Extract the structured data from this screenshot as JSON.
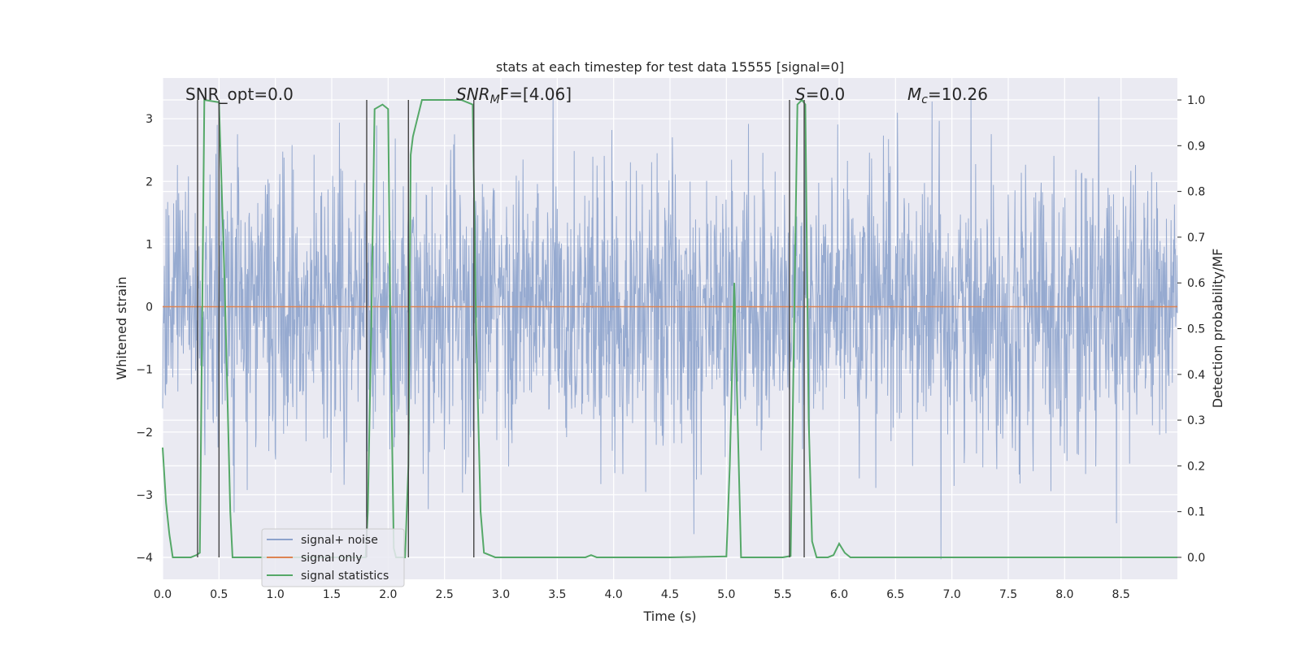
{
  "chart_data": {
    "type": "line",
    "title": "stats at each timestep for test data 15555 [signal=0]",
    "xlabel": "Time (s)",
    "ylabel_left": "Whitened strain",
    "ylabel_right": "Detection probability/MF",
    "xlim": [
      0,
      9.0
    ],
    "ylim_left": [
      -4.35,
      3.65
    ],
    "ylim_right": [
      -0.048,
      1.048
    ],
    "grid": true,
    "legend_position": "lower-left",
    "x_ticks": [
      "0.0",
      "0.5",
      "1.0",
      "1.5",
      "2.0",
      "2.5",
      "3.0",
      "3.5",
      "4.0",
      "4.5",
      "5.0",
      "5.5",
      "6.0",
      "6.5",
      "7.0",
      "7.5",
      "8.0",
      "8.5"
    ],
    "y_left_ticks": [
      "3",
      "2",
      "1",
      "0",
      "−1",
      "−2",
      "−3",
      "−4"
    ],
    "y_right_ticks": [
      "1.0",
      "0.9",
      "0.8",
      "0.7",
      "0.6",
      "0.5",
      "0.4",
      "0.3",
      "0.2",
      "0.1",
      "0.0"
    ],
    "annotations": {
      "snr_opt": "SNR_opt=0.0",
      "snr_mf_main": "SNR",
      "snr_mf_sub": "M",
      "snr_mf_tail": "F=[4.06]",
      "s_label": "S",
      "s_tail": "=0.0",
      "mc_label": "M",
      "mc_sub": "c",
      "mc_tail": "=10.26"
    },
    "series": [
      {
        "name": "signal+ noise",
        "color": "#8da3cc",
        "noise_amplitude": 1.1,
        "axis": "left"
      },
      {
        "name": "signal only",
        "color": "#dd8452",
        "values_constant": 0.0,
        "axis": "left"
      },
      {
        "name": "signal statistics",
        "color": "#55a868",
        "axis": "right",
        "points": [
          [
            0.0,
            0.24
          ],
          [
            0.03,
            0.12
          ],
          [
            0.06,
            0.05
          ],
          [
            0.09,
            0.0
          ],
          [
            0.15,
            0.0
          ],
          [
            0.2,
            0.0
          ],
          [
            0.25,
            0.0
          ],
          [
            0.3,
            0.005
          ],
          [
            0.33,
            0.01
          ],
          [
            0.37,
            1.0
          ],
          [
            0.5,
            0.995
          ],
          [
            0.55,
            0.6
          ],
          [
            0.6,
            0.1
          ],
          [
            0.62,
            0.0
          ],
          [
            0.7,
            0.0
          ],
          [
            1.0,
            0.0
          ],
          [
            1.5,
            0.0
          ],
          [
            1.8,
            0.0
          ],
          [
            1.82,
            0.1
          ],
          [
            1.85,
            0.5
          ],
          [
            1.88,
            0.98
          ],
          [
            1.95,
            0.99
          ],
          [
            2.0,
            0.98
          ],
          [
            2.02,
            0.5
          ],
          [
            2.05,
            0.02
          ],
          [
            2.07,
            0.0
          ],
          [
            2.15,
            0.0
          ],
          [
            2.18,
            0.2
          ],
          [
            2.2,
            0.88
          ],
          [
            2.22,
            0.92
          ],
          [
            2.3,
            1.0
          ],
          [
            2.5,
            1.0
          ],
          [
            2.65,
            1.0
          ],
          [
            2.75,
            0.99
          ],
          [
            2.78,
            0.5
          ],
          [
            2.82,
            0.1
          ],
          [
            2.85,
            0.01
          ],
          [
            2.95,
            0.0
          ],
          [
            3.5,
            0.0
          ],
          [
            3.75,
            0.0
          ],
          [
            3.8,
            0.005
          ],
          [
            3.85,
            0.0
          ],
          [
            4.5,
            0.0
          ],
          [
            5.0,
            0.002
          ],
          [
            5.03,
            0.2
          ],
          [
            5.07,
            0.6
          ],
          [
            5.1,
            0.3
          ],
          [
            5.13,
            0.0
          ],
          [
            5.5,
            0.0
          ],
          [
            5.57,
            0.003
          ],
          [
            5.6,
            0.5
          ],
          [
            5.63,
            0.99
          ],
          [
            5.67,
            1.0
          ],
          [
            5.7,
            0.99
          ],
          [
            5.73,
            0.3
          ],
          [
            5.76,
            0.035
          ],
          [
            5.8,
            0.0
          ],
          [
            5.9,
            0.0
          ],
          [
            5.95,
            0.005
          ],
          [
            6.0,
            0.03
          ],
          [
            6.05,
            0.01
          ],
          [
            6.1,
            0.0
          ],
          [
            6.5,
            0.0
          ],
          [
            7.0,
            0.0
          ],
          [
            8.0,
            0.0
          ],
          [
            9.0,
            0.0
          ]
        ]
      }
    ],
    "vertical_markers": [
      0.31,
      0.5,
      1.81,
      2.18,
      2.76,
      5.56,
      5.69
    ],
    "marker_color": "#444444"
  }
}
